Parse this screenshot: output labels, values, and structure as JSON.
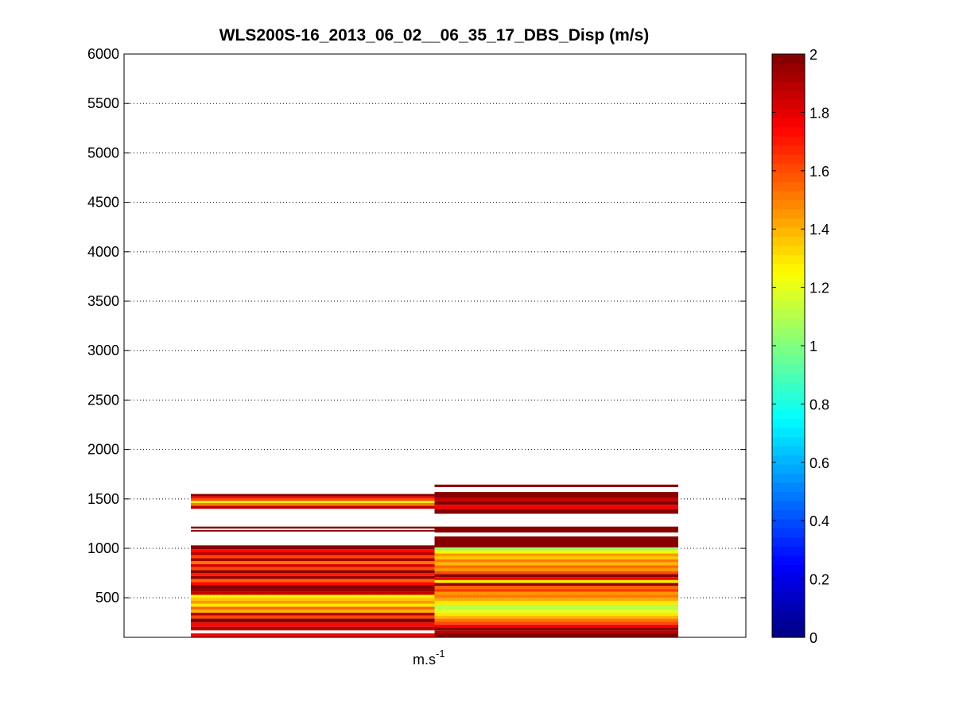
{
  "chart_data": {
    "type": "heatmap",
    "title": "WLS200S-16_2013_06_02__06_35_17_DBS_Disp (m/s)",
    "xlabel_base": "m.s",
    "xlabel_exponent": "-1",
    "ylabel": "",
    "ylim": [
      100,
      6000
    ],
    "yticks": [
      500,
      1000,
      1500,
      2000,
      2500,
      3000,
      3500,
      4000,
      4500,
      5000,
      5500,
      6000
    ],
    "grid": "horizontal dotted",
    "colormap": "jet",
    "clim": [
      0,
      2
    ],
    "colorbar_ticks": [
      0,
      0.2,
      0.4,
      0.6,
      0.8,
      1,
      1.2,
      1.4,
      1.6,
      1.8,
      2
    ],
    "columns": [
      {
        "x": 1,
        "rows": [
          {
            "y0": 100,
            "y1": 140,
            "value": 1.78
          },
          {
            "y0": 140,
            "y1": 170,
            "value": null
          },
          {
            "y0": 170,
            "y1": 210,
            "value": 1.88
          },
          {
            "y0": 210,
            "y1": 250,
            "value": 1.72
          },
          {
            "y0": 250,
            "y1": 290,
            "value": 2.0
          },
          {
            "y0": 290,
            "y1": 320,
            "value": 1.62
          },
          {
            "y0": 320,
            "y1": 350,
            "value": 1.9
          },
          {
            "y0": 350,
            "y1": 380,
            "value": 1.38
          },
          {
            "y0": 380,
            "y1": 410,
            "value": 1.55
          },
          {
            "y0": 410,
            "y1": 440,
            "value": 1.3
          },
          {
            "y0": 440,
            "y1": 470,
            "value": 1.45
          },
          {
            "y0": 470,
            "y1": 500,
            "value": 1.35
          },
          {
            "y0": 500,
            "y1": 530,
            "value": 1.25
          },
          {
            "y0": 530,
            "y1": 560,
            "value": 1.85
          },
          {
            "y0": 560,
            "y1": 590,
            "value": 1.95
          },
          {
            "y0": 590,
            "y1": 630,
            "value": 2.0
          },
          {
            "y0": 630,
            "y1": 660,
            "value": 1.72
          },
          {
            "y0": 660,
            "y1": 690,
            "value": 1.55
          },
          {
            "y0": 690,
            "y1": 720,
            "value": 1.95
          },
          {
            "y0": 720,
            "y1": 750,
            "value": 1.7
          },
          {
            "y0": 750,
            "y1": 780,
            "value": 2.0
          },
          {
            "y0": 780,
            "y1": 810,
            "value": 1.6
          },
          {
            "y0": 810,
            "y1": 840,
            "value": 1.82
          },
          {
            "y0": 840,
            "y1": 870,
            "value": 1.5
          },
          {
            "y0": 870,
            "y1": 900,
            "value": 1.92
          },
          {
            "y0": 900,
            "y1": 930,
            "value": 1.62
          },
          {
            "y0": 930,
            "y1": 960,
            "value": 1.88
          },
          {
            "y0": 960,
            "y1": 990,
            "value": 1.72
          },
          {
            "y0": 990,
            "y1": 1030,
            "value": 2.0
          },
          {
            "y0": 1030,
            "y1": 1170,
            "value": null
          },
          {
            "y0": 1170,
            "y1": 1185,
            "value": 2.0
          },
          {
            "y0": 1185,
            "y1": 1200,
            "value": null
          },
          {
            "y0": 1200,
            "y1": 1220,
            "value": 2.0
          },
          {
            "y0": 1220,
            "y1": 1400,
            "value": null
          },
          {
            "y0": 1400,
            "y1": 1430,
            "value": 1.9
          },
          {
            "y0": 1430,
            "y1": 1460,
            "value": 1.5
          },
          {
            "y0": 1460,
            "y1": 1480,
            "value": 1.25
          },
          {
            "y0": 1480,
            "y1": 1510,
            "value": 1.62
          },
          {
            "y0": 1510,
            "y1": 1530,
            "value": 1.82
          },
          {
            "y0": 1530,
            "y1": 1550,
            "value": 2.0
          }
        ]
      },
      {
        "x": 2,
        "rows": [
          {
            "y0": 100,
            "y1": 140,
            "value": 2.0
          },
          {
            "y0": 140,
            "y1": 170,
            "value": 1.9
          },
          {
            "y0": 170,
            "y1": 200,
            "value": 2.0
          },
          {
            "y0": 200,
            "y1": 230,
            "value": 1.75
          },
          {
            "y0": 230,
            "y1": 260,
            "value": 1.6
          },
          {
            "y0": 260,
            "y1": 290,
            "value": 1.5
          },
          {
            "y0": 290,
            "y1": 320,
            "value": 1.4
          },
          {
            "y0": 320,
            "y1": 350,
            "value": 1.3
          },
          {
            "y0": 350,
            "y1": 380,
            "value": 1.2
          },
          {
            "y0": 380,
            "y1": 430,
            "value": 1.1
          },
          {
            "y0": 430,
            "y1": 470,
            "value": 1.3
          },
          {
            "y0": 470,
            "y1": 500,
            "value": 1.42
          },
          {
            "y0": 500,
            "y1": 530,
            "value": 1.52
          },
          {
            "y0": 530,
            "y1": 560,
            "value": 1.45
          },
          {
            "y0": 560,
            "y1": 590,
            "value": 1.65
          },
          {
            "y0": 590,
            "y1": 620,
            "value": 1.55
          },
          {
            "y0": 620,
            "y1": 650,
            "value": 1.95
          },
          {
            "y0": 650,
            "y1": 680,
            "value": 1.3
          },
          {
            "y0": 680,
            "y1": 710,
            "value": 1.75
          },
          {
            "y0": 710,
            "y1": 740,
            "value": 2.0
          },
          {
            "y0": 740,
            "y1": 770,
            "value": 1.62
          },
          {
            "y0": 770,
            "y1": 800,
            "value": 1.45
          },
          {
            "y0": 800,
            "y1": 830,
            "value": 1.55
          },
          {
            "y0": 830,
            "y1": 860,
            "value": 1.4
          },
          {
            "y0": 860,
            "y1": 890,
            "value": 1.5
          },
          {
            "y0": 890,
            "y1": 920,
            "value": 1.35
          },
          {
            "y0": 920,
            "y1": 950,
            "value": 1.45
          },
          {
            "y0": 950,
            "y1": 980,
            "value": 1.25
          },
          {
            "y0": 980,
            "y1": 1010,
            "value": 1.05
          },
          {
            "y0": 1010,
            "y1": 1120,
            "value": 2.0
          },
          {
            "y0": 1120,
            "y1": 1160,
            "value": null
          },
          {
            "y0": 1160,
            "y1": 1220,
            "value": 2.0
          },
          {
            "y0": 1220,
            "y1": 1350,
            "value": null
          },
          {
            "y0": 1350,
            "y1": 1400,
            "value": 2.0
          },
          {
            "y0": 1400,
            "y1": 1440,
            "value": 1.75
          },
          {
            "y0": 1440,
            "y1": 1480,
            "value": 2.0
          },
          {
            "y0": 1480,
            "y1": 1510,
            "value": 1.85
          },
          {
            "y0": 1510,
            "y1": 1570,
            "value": 2.0
          },
          {
            "y0": 1570,
            "y1": 1620,
            "value": null
          },
          {
            "y0": 1620,
            "y1": 1645,
            "value": 2.0
          }
        ]
      }
    ]
  }
}
